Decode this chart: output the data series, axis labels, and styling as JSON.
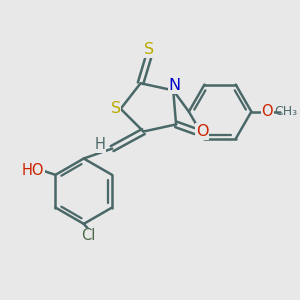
{
  "background_color": "#e8e8e8",
  "bond_color": "#4a6868",
  "bond_width": 1.8,
  "atom_colors": {
    "S": "#bbaa00",
    "N": "#0000cc",
    "O": "#cc2200",
    "Cl": "#4a6848",
    "H": "#4a6868"
  },
  "figsize": [
    3.0,
    3.0
  ],
  "dpi": 100
}
